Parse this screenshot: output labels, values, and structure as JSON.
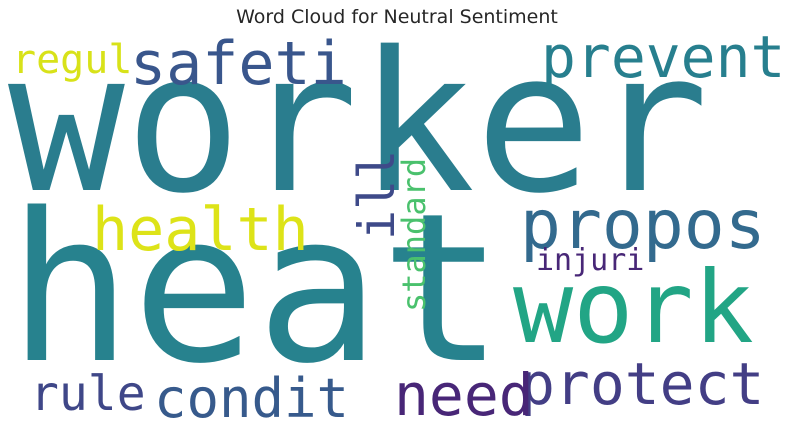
{
  "title": "Word Cloud for Neutral Sentiment",
  "words": [
    {
      "text": "worker",
      "color": "#2a7d8e"
    },
    {
      "text": "heat",
      "color": "#27828e"
    },
    {
      "text": "work",
      "color": "#22a585"
    },
    {
      "text": "propos",
      "color": "#336a8e"
    },
    {
      "text": "protect",
      "color": "#433e85"
    },
    {
      "text": "health",
      "color": "#dde318"
    },
    {
      "text": "safeti",
      "color": "#39568c"
    },
    {
      "text": "prevent",
      "color": "#277f8e"
    },
    {
      "text": "condit",
      "color": "#375a8c"
    },
    {
      "text": "need",
      "color": "#482677"
    },
    {
      "text": "rule",
      "color": "#3f4788"
    },
    {
      "text": "regul",
      "color": "#d8e219"
    },
    {
      "text": "ill",
      "color": "#3e4a89"
    },
    {
      "text": "standard",
      "color": "#4ac16d"
    },
    {
      "text": "injuri",
      "color": "#482777"
    }
  ]
}
